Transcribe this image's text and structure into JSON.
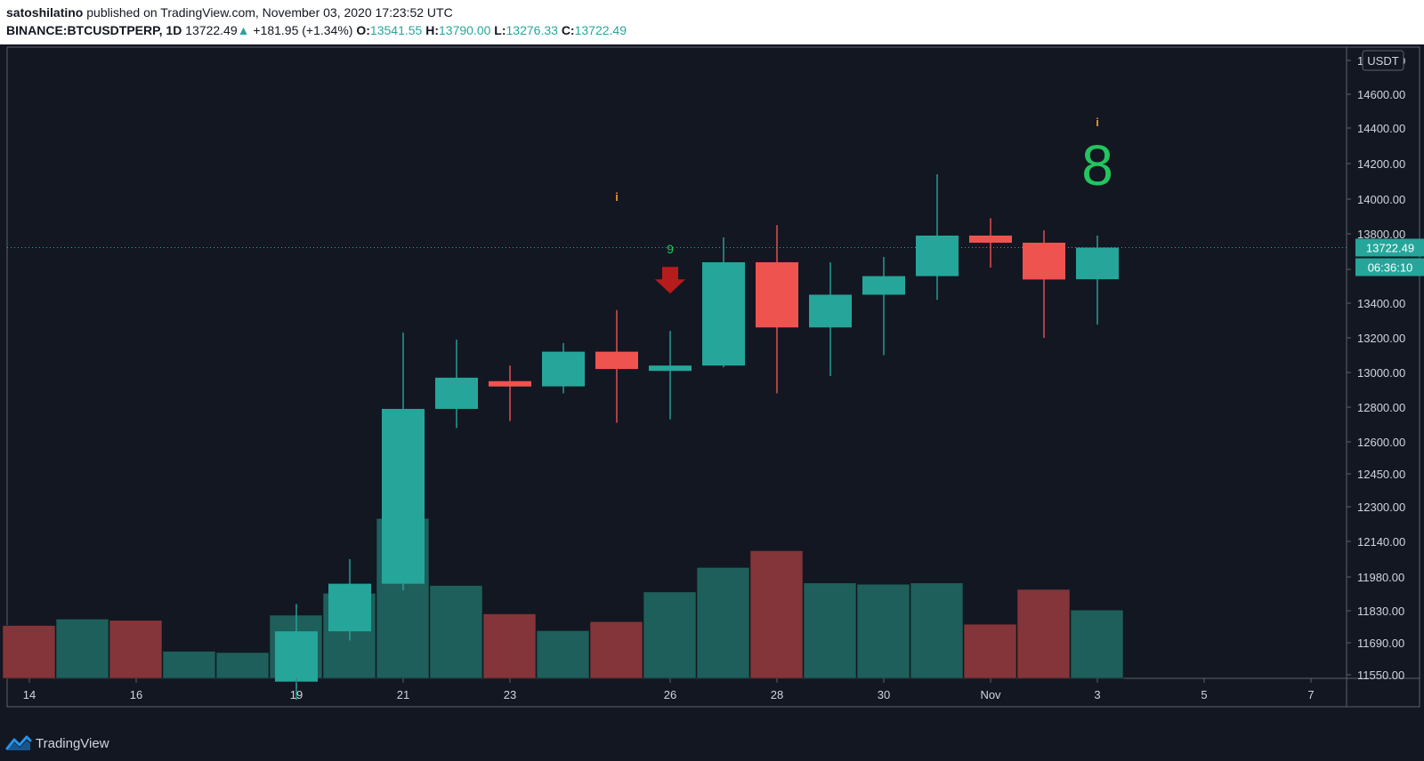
{
  "header": {
    "author": "satoshilatino",
    "published_text": "published on TradingView.com, November 03, 2020 17:23:52 UTC",
    "symbol": "BINANCE:BTCUSDTPERP, 1D",
    "last": "13722.49",
    "change": "+181.95 (+1.34%)",
    "o_label": "O:",
    "o_value": "13541.55",
    "h_label": "H:",
    "h_value": "13790.00",
    "l_label": "L:",
    "l_value": "13276.33",
    "c_label": "C:",
    "c_value": "13722.49"
  },
  "footer": {
    "brand": "TradingView"
  },
  "colors": {
    "bull": "#26a69a",
    "bear": "#ef5350",
    "bull_volume": "#1e5f5c",
    "bear_volume": "#843539",
    "background": "#131722",
    "grid_text": "#d1d4dc",
    "seq_green": "#22c55e",
    "info_orange": "#f7931a",
    "arrow_red": "#b71c1c"
  },
  "chart_data": {
    "type": "candlestick",
    "currency_label": "USDT",
    "price_axis_ticks": [
      11550,
      11690,
      11830,
      11980,
      12140,
      12300,
      12450,
      12600,
      12800,
      13000,
      13200,
      13400,
      13600,
      13800,
      14000,
      14200,
      14400,
      14600,
      14800
    ],
    "price_axis_tick_labels": [
      "11550.00",
      "11690.00",
      "11830.00",
      "11980.00",
      "12140.00",
      "12300.00",
      "12450.00",
      "12600.00",
      "12800.00",
      "13000.00",
      "13200.00",
      "13400.00",
      "13600.00",
      "13800.00",
      "14000.00",
      "14200.00",
      "14400.00",
      "14600.00",
      "14800.00"
    ],
    "time_axis_labels": [
      {
        "date": "Oct 14",
        "label": "14"
      },
      {
        "date": "Oct 16",
        "label": "16"
      },
      {
        "date": "Oct 19",
        "label": "19"
      },
      {
        "date": "Oct 21",
        "label": "21"
      },
      {
        "date": "Oct 23",
        "label": "23"
      },
      {
        "date": "Oct 26",
        "label": "26"
      },
      {
        "date": "Oct 28",
        "label": "28"
      },
      {
        "date": "Oct 30",
        "label": "30"
      },
      {
        "date": "Nov 1",
        "label": "Nov"
      },
      {
        "date": "Nov 3",
        "label": "3"
      },
      {
        "date": "Nov 5",
        "label": "5"
      },
      {
        "date": "Nov 7",
        "label": "7"
      }
    ],
    "last_price_label": "13722.49",
    "countdown_label": "06:36:10",
    "candles": [
      {
        "date": "Oct 19",
        "o": 11520,
        "h": 11860,
        "l": 11440,
        "c": 11740
      },
      {
        "date": "Oct 20",
        "o": 11740,
        "h": 12060,
        "l": 11700,
        "c": 11950
      },
      {
        "date": "Oct 21",
        "o": 11950,
        "h": 13230,
        "l": 11920,
        "c": 12790
      },
      {
        "date": "Oct 22",
        "o": 12790,
        "h": 13190,
        "l": 12680,
        "c": 12970
      },
      {
        "date": "Oct 23",
        "o": 12950,
        "h": 13040,
        "l": 12720,
        "c": 12920
      },
      {
        "date": "Oct 24",
        "o": 12920,
        "h": 13170,
        "l": 12880,
        "c": 13120
      },
      {
        "date": "Oct 25",
        "o": 13120,
        "h": 13360,
        "l": 12710,
        "c": 13020
      },
      {
        "date": "Oct 26",
        "o": 13020,
        "h": 13240,
        "l": 12730,
        "c": 13040
      },
      {
        "date": "Oct 27",
        "o": 13040,
        "h": 13780,
        "l": 13030,
        "c": 13640
      },
      {
        "date": "Oct 28",
        "o": 13640,
        "h": 13850,
        "l": 12880,
        "c": 13260
      },
      {
        "date": "Oct 29",
        "o": 13260,
        "h": 13640,
        "l": 12980,
        "c": 13450
      },
      {
        "date": "Oct 30",
        "o": 13450,
        "h": 13670,
        "l": 13100,
        "c": 13560
      },
      {
        "date": "Oct 31",
        "o": 13560,
        "h": 14140,
        "l": 13420,
        "c": 13790
      },
      {
        "date": "Nov 1",
        "o": 13790,
        "h": 13890,
        "l": 13610,
        "c": 13750
      },
      {
        "date": "Nov 2",
        "o": 13750,
        "h": 13820,
        "l": 13200,
        "c": 13540
      },
      {
        "date": "Nov 3",
        "o": 13541.55,
        "h": 13790.0,
        "l": 13276.33,
        "c": 13722.49
      }
    ],
    "volume": {
      "scale_max": 100,
      "bars": [
        {
          "date": "Oct 14",
          "v": 41,
          "dir": "down"
        },
        {
          "date": "Oct 15",
          "v": 46,
          "dir": "up"
        },
        {
          "date": "Oct 16",
          "v": 45,
          "dir": "down"
        },
        {
          "date": "Oct 17",
          "v": 21,
          "dir": "up"
        },
        {
          "date": "Oct 18",
          "v": 20,
          "dir": "up"
        },
        {
          "date": "Oct 19",
          "v": 49,
          "dir": "up"
        },
        {
          "date": "Oct 20",
          "v": 66,
          "dir": "up"
        },
        {
          "date": "Oct 21",
          "v": 124,
          "dir": "up"
        },
        {
          "date": "Oct 22",
          "v": 72,
          "dir": "up"
        },
        {
          "date": "Oct 23",
          "v": 50,
          "dir": "down"
        },
        {
          "date": "Oct 24",
          "v": 37,
          "dir": "up"
        },
        {
          "date": "Oct 25",
          "v": 44,
          "dir": "down"
        },
        {
          "date": "Oct 26",
          "v": 67,
          "dir": "up"
        },
        {
          "date": "Oct 27",
          "v": 86,
          "dir": "up"
        },
        {
          "date": "Oct 28",
          "v": 99,
          "dir": "down"
        },
        {
          "date": "Oct 29",
          "v": 74,
          "dir": "up"
        },
        {
          "date": "Oct 30",
          "v": 73,
          "dir": "up"
        },
        {
          "date": "Oct 31",
          "v": 74,
          "dir": "up"
        },
        {
          "date": "Nov 1",
          "v": 42,
          "dir": "down"
        },
        {
          "date": "Nov 2",
          "v": 69,
          "dir": "down"
        },
        {
          "date": "Nov 3",
          "v": 53,
          "dir": "up"
        }
      ]
    },
    "annotations": [
      {
        "type": "info",
        "date": "Oct 25",
        "price": 13990,
        "text": "i"
      },
      {
        "type": "count",
        "date": "Oct 26",
        "price": 13690,
        "text": "9",
        "size": "small"
      },
      {
        "type": "arrow-down",
        "date": "Oct 26",
        "price": 13520
      },
      {
        "type": "info",
        "date": "Nov 3",
        "price": 14410,
        "text": "i"
      },
      {
        "type": "count",
        "date": "Nov 3",
        "price": 14080,
        "text": "8",
        "size": "large"
      }
    ]
  }
}
